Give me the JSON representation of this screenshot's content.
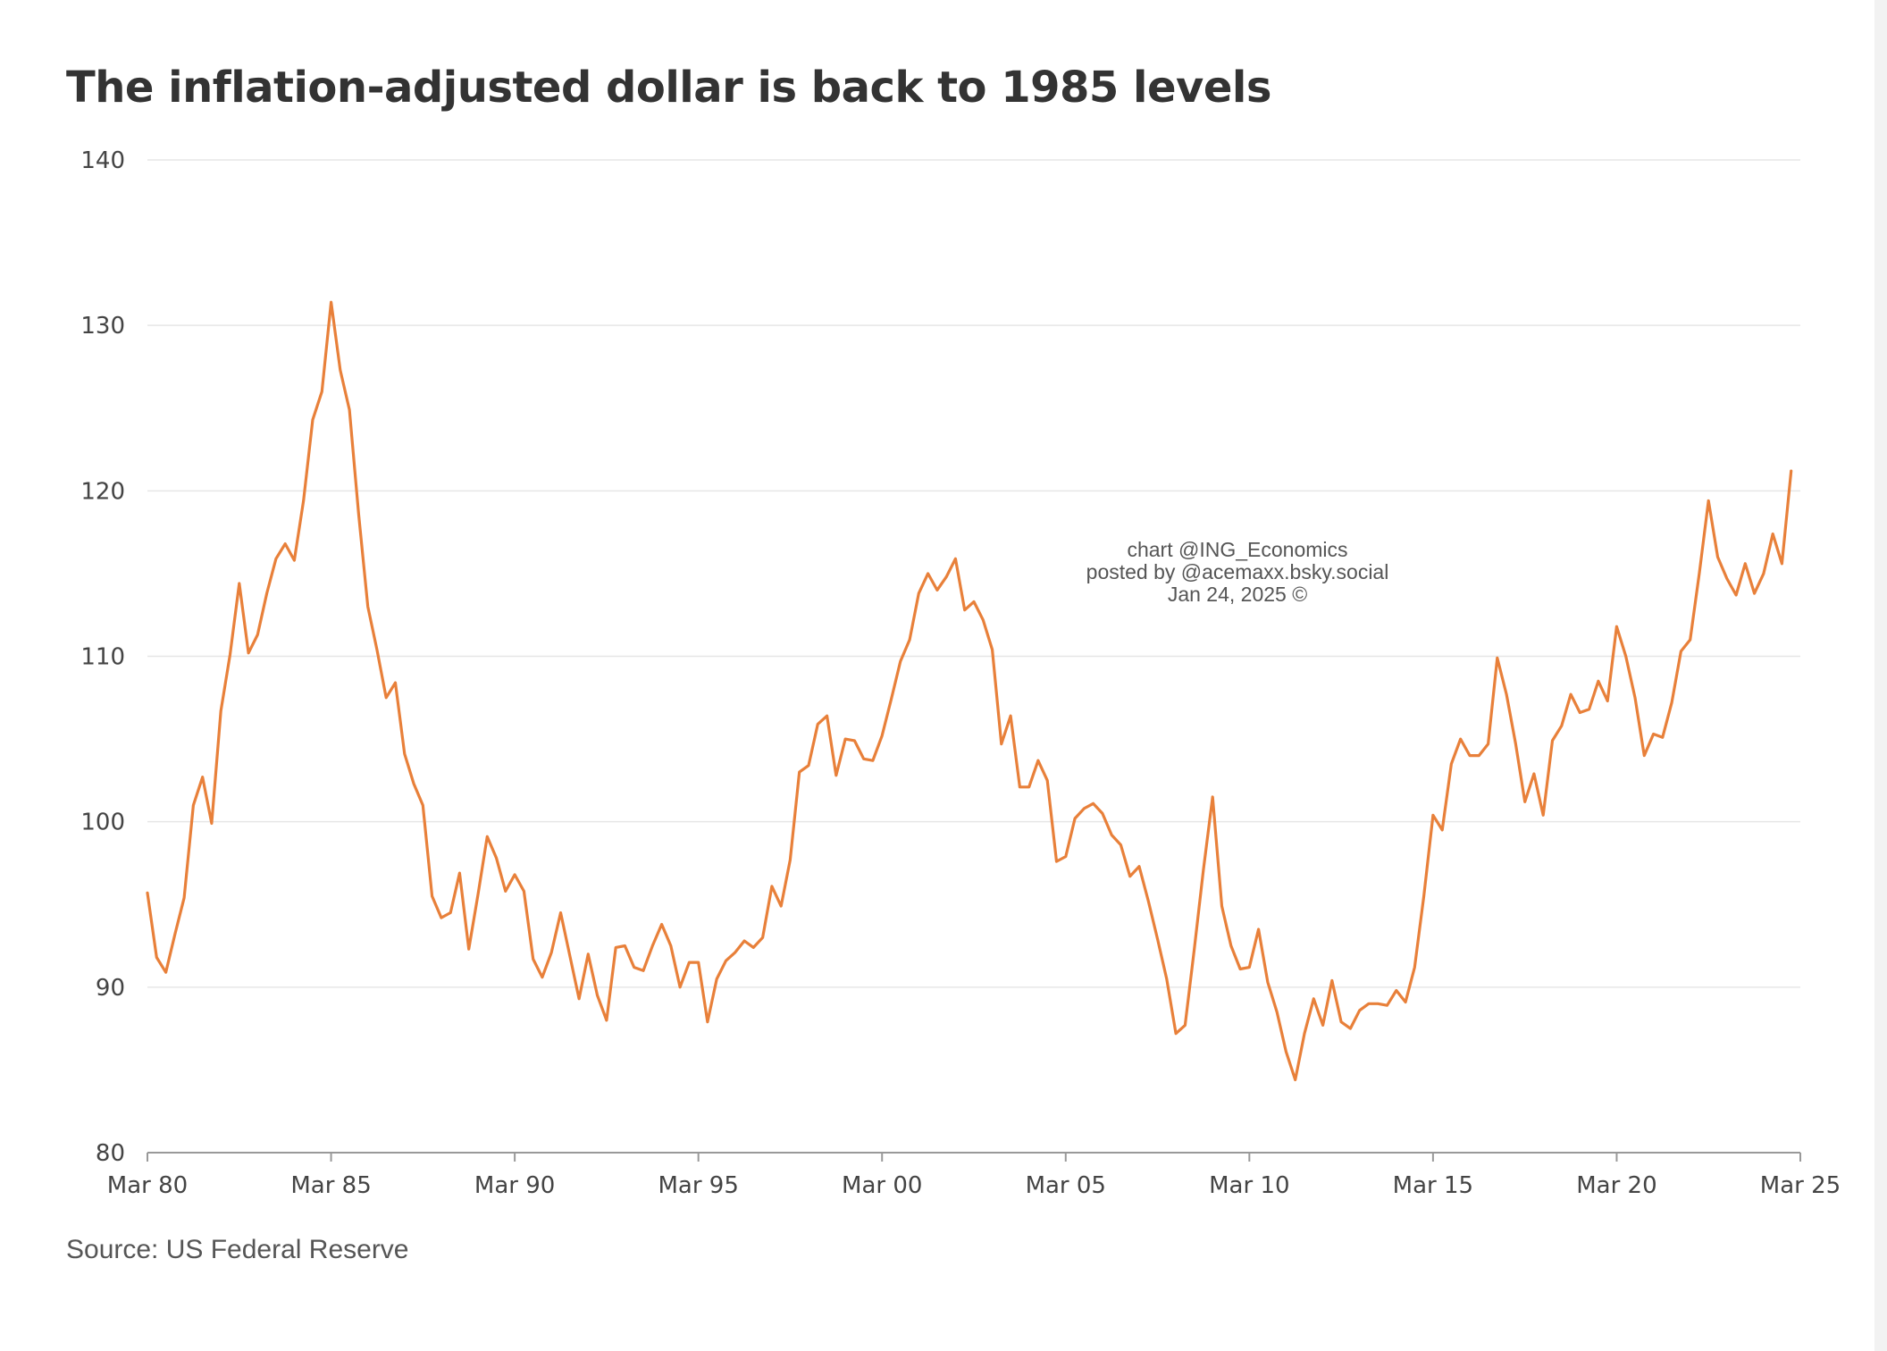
{
  "chart_data": {
    "type": "line",
    "title": "The inflation-adjusted dollar is back to 1985 levels",
    "xlabel": "",
    "ylabel": "",
    "source": "Source: US Federal Reserve",
    "watermark": [
      "chart @ING_Economics",
      "posted by @acemaxx.bsky.social",
      "Jan 24, 2025 ©"
    ],
    "ylim": [
      80,
      140
    ],
    "yticks": [
      80,
      90,
      100,
      110,
      120,
      130,
      140
    ],
    "xlim": [
      1980.0,
      2025.0
    ],
    "xticks": [
      {
        "label": "Mar 80",
        "value": 1980.0
      },
      {
        "label": "Mar 85",
        "value": 1985.0
      },
      {
        "label": "Mar 90",
        "value": 1990.0
      },
      {
        "label": "Mar 95",
        "value": 1995.0
      },
      {
        "label": "Mar 00",
        "value": 2000.0
      },
      {
        "label": "Mar 05",
        "value": 2005.0
      },
      {
        "label": "Mar 10",
        "value": 2010.0
      },
      {
        "label": "Mar 15",
        "value": 2015.0
      },
      {
        "label": "Mar 20",
        "value": 2020.0
      },
      {
        "label": "Mar 25",
        "value": 2025.0
      }
    ],
    "grid": true,
    "color": "#e8803a",
    "x": [
      1980.0,
      1980.25,
      1980.5,
      1980.75,
      1981.0,
      1981.25,
      1981.5,
      1981.75,
      1982.0,
      1982.25,
      1982.5,
      1982.75,
      1983.0,
      1983.25,
      1983.5,
      1983.75,
      1984.0,
      1984.25,
      1984.5,
      1984.75,
      1985.0,
      1985.25,
      1985.5,
      1985.75,
      1986.0,
      1986.25,
      1986.5,
      1986.75,
      1987.0,
      1987.25,
      1987.5,
      1987.75,
      1988.0,
      1988.25,
      1988.5,
      1988.75,
      1989.0,
      1989.25,
      1989.5,
      1989.75,
      1990.0,
      1990.25,
      1990.5,
      1990.75,
      1991.0,
      1991.25,
      1991.5,
      1991.75,
      1992.0,
      1992.25,
      1992.5,
      1992.75,
      1993.0,
      1993.25,
      1993.5,
      1993.75,
      1994.0,
      1994.25,
      1994.5,
      1994.75,
      1995.0,
      1995.25,
      1995.5,
      1995.75,
      1996.0,
      1996.25,
      1996.5,
      1996.75,
      1997.0,
      1997.25,
      1997.5,
      1997.75,
      1998.0,
      1998.25,
      1998.5,
      1998.75,
      1999.0,
      1999.25,
      1999.5,
      1999.75,
      2000.0,
      2000.25,
      2000.5,
      2000.75,
      2001.0,
      2001.25,
      2001.5,
      2001.75,
      2002.0,
      2002.25,
      2002.5,
      2002.75,
      2003.0,
      2003.25,
      2003.5,
      2003.75,
      2004.0,
      2004.25,
      2004.5,
      2004.75,
      2005.0,
      2005.25,
      2005.5,
      2005.75,
      2006.0,
      2006.25,
      2006.5,
      2006.75,
      2007.0,
      2007.25,
      2007.5,
      2007.75,
      2008.0,
      2008.25,
      2008.5,
      2008.75,
      2009.0,
      2009.25,
      2009.5,
      2009.75,
      2010.0,
      2010.25,
      2010.5,
      2010.75,
      2011.0,
      2011.25,
      2011.5,
      2011.75,
      2012.0,
      2012.25,
      2012.5,
      2012.75,
      2013.0,
      2013.25,
      2013.5,
      2013.75,
      2014.0,
      2014.25,
      2014.5,
      2014.75,
      2015.0,
      2015.25,
      2015.5,
      2015.75,
      2016.0,
      2016.25,
      2016.5,
      2016.75,
      2017.0,
      2017.25,
      2017.5,
      2017.75,
      2018.0,
      2018.25,
      2018.5,
      2018.75,
      2019.0,
      2019.25,
      2019.5,
      2019.75,
      2020.0,
      2020.25,
      2020.5,
      2020.75,
      2021.0,
      2021.25,
      2021.5,
      2021.75,
      2022.0,
      2022.25,
      2022.5,
      2022.75,
      2023.0,
      2023.25,
      2023.5,
      2023.75,
      2024.0,
      2024.25,
      2024.5,
      2024.75
    ],
    "y": [
      95.7,
      91.8,
      90.9,
      93.2,
      95.4,
      101.0,
      102.7,
      99.9,
      106.7,
      110.1,
      114.4,
      110.2,
      111.3,
      113.8,
      115.9,
      116.8,
      115.8,
      119.4,
      124.3,
      126.0,
      131.4,
      127.3,
      124.9,
      118.6,
      113.0,
      110.4,
      107.5,
      108.4,
      104.1,
      102.3,
      101.0,
      95.5,
      94.2,
      94.5,
      96.9,
      92.3,
      95.6,
      99.1,
      97.8,
      95.8,
      96.8,
      95.8,
      91.7,
      90.6,
      92.1,
      94.5,
      91.9,
      89.3,
      92.0,
      89.5,
      88.0,
      92.4,
      92.5,
      91.2,
      91.0,
      92.5,
      93.8,
      92.5,
      90.0,
      91.5,
      91.5,
      87.9,
      90.5,
      91.6,
      92.1,
      92.8,
      92.4,
      93.0,
      96.1,
      94.9,
      97.7,
      103.0,
      103.4,
      105.9,
      106.4,
      102.8,
      105.0,
      104.9,
      103.8,
      103.7,
      105.2,
      107.4,
      109.7,
      111.0,
      113.8,
      115.0,
      114.0,
      114.8,
      115.9,
      112.8,
      113.3,
      112.2,
      110.4,
      104.7,
      106.4,
      102.1,
      102.1,
      103.7,
      102.5,
      97.6,
      97.9,
      100.2,
      100.8,
      101.1,
      100.5,
      99.2,
      98.6,
      96.7,
      97.3,
      95.2,
      92.9,
      90.5,
      87.2,
      87.7,
      92.3,
      97.1,
      101.5,
      94.9,
      92.5,
      91.1,
      91.2,
      93.5,
      90.3,
      88.5,
      86.1,
      84.4,
      87.2,
      89.3,
      87.7,
      90.4,
      87.9,
      87.5,
      88.6,
      89.0,
      89.0,
      88.9,
      89.8,
      89.1,
      91.2,
      95.5,
      100.4,
      99.5,
      103.5,
      105.0,
      104.0,
      104.0,
      104.7,
      109.9,
      107.7,
      104.7,
      101.2,
      102.9,
      100.4,
      104.9,
      105.8,
      107.7,
      106.6,
      106.8,
      108.5,
      107.3,
      111.8,
      110.0,
      107.5,
      104.0,
      105.3,
      105.1,
      107.2,
      110.3,
      111.0,
      115.0,
      119.4,
      116.0,
      114.7,
      113.7,
      115.6,
      113.8,
      115.0,
      117.4,
      115.6,
      121.2
    ]
  }
}
